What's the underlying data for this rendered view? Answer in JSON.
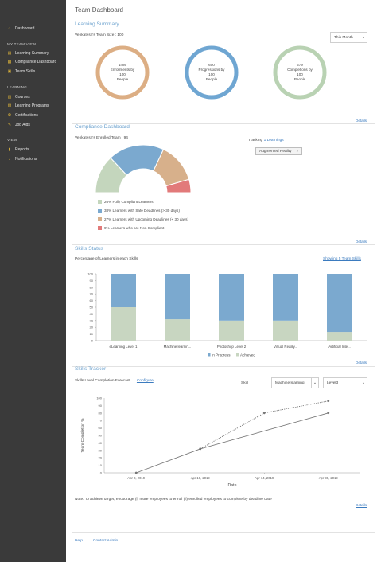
{
  "sidebar": {
    "dashboard": "Dashboard",
    "my_team_view_heading": "MY TEAM VIEW",
    "learning_summary": "Learning Summary",
    "compliance_dashboard": "Compliance Dashboard",
    "team_skills": "Team Skills",
    "learning_heading": "LEARNING",
    "courses": "Courses",
    "learning_programs": "Learning Programs",
    "certifications": "Certifications",
    "job_aids": "Job Aids",
    "view_heading": "VIEW",
    "reports": "Reports",
    "notifications": "Notifications",
    "icon_color": "#d8b03a"
  },
  "header": {
    "title": "Team Dashboard"
  },
  "learning_summary": {
    "title": "Learning Summary",
    "team_size": "Venkatesh's Team Size : 100",
    "period_select": "This Month",
    "donuts": [
      {
        "value": "1486",
        "line1": "Enrollments by",
        "line2": "100",
        "line3": "People",
        "color": "#dcae84"
      },
      {
        "value": "600",
        "line1": "Progressions by",
        "line2": "100",
        "line3": "People",
        "color": "#6fa6d2"
      },
      {
        "value": "579",
        "line1": "Completions by",
        "line2": "100",
        "line3": "People",
        "color": "#b9d2b3"
      }
    ],
    "details": "Details"
  },
  "compliance": {
    "title": "Compliance Dashboard",
    "enrolled_team": "Venkatesh's Enrolled Team : 94",
    "tracking_label": "Tracking",
    "tracking_link": "1 Learnings",
    "tag": "Augmented Reality",
    "tag_close": "×",
    "segments": [
      {
        "percent": 26,
        "label": "26% Fully Compliant Learners",
        "color": "#c4d6bd"
      },
      {
        "percent": 38,
        "label": "38% Learners with Safe Deadlines (> 30 days)",
        "color": "#7ba9cf"
      },
      {
        "percent": 27,
        "label": "27% Learners with Upcoming Deadlines (< 30 days)",
        "color": "#d7b08b"
      },
      {
        "percent": 9,
        "label": "9% Learners who are Non Compliant",
        "color": "#e27a7a"
      }
    ],
    "details": "Details"
  },
  "skills_status": {
    "title": "Skills Status",
    "subtitle": "Percentage of Learners in each Skills",
    "showing_link": "Showing 5 Team Skills",
    "details": "Details",
    "chart_data": {
      "type": "bar",
      "stacked": true,
      "categories": [
        "eLearning Level 1",
        "Machine learnin...",
        "Photoshop Level 2",
        "Virtual Reality...",
        "Artificial Inte..."
      ],
      "series": [
        {
          "name": "Achieved",
          "values": [
            50,
            32,
            30,
            30,
            13
          ],
          "color": "#c8d6c1"
        },
        {
          "name": "In Progress",
          "values": [
            50,
            68,
            70,
            70,
            87
          ],
          "color": "#7ba9cf"
        }
      ],
      "legend_order": [
        "In Progress",
        "Achieved"
      ],
      "yticks": [
        "0",
        "10",
        "20",
        "30",
        "40",
        "50",
        "60",
        "70",
        "80",
        "90",
        "100"
      ],
      "ylim": [
        0,
        100
      ],
      "legend": "bottom"
    }
  },
  "skills_tracker": {
    "title": "Skills Tracker",
    "subtitle": "Skills Level Completion Forecast",
    "configure_link": "Configure",
    "skill_label": "Skill",
    "skill_select": "Machine learning",
    "level_select": "Level3",
    "details": "Details",
    "note": "Note: To achieve target, encourage (i) more employees to enroll (ii) enrolled employees to complete by deadline date",
    "chart_data": {
      "type": "line",
      "xlabel": "Date",
      "ylabel": "Team Completion %",
      "xticks": [
        "Apr 2, 2019",
        "Apr 10, 2019",
        "Apr 14, 2019",
        "Apr 30, 2019"
      ],
      "yticks": [
        "0",
        "10",
        "20",
        "30",
        "40",
        "50",
        "60",
        "70",
        "80",
        "90",
        "100"
      ],
      "ylim": [
        0,
        100
      ],
      "series": [
        {
          "style": "solid",
          "x": [
            "Apr 2, 2019",
            "Apr 10, 2019",
            "Apr 30, 2019"
          ],
          "y": [
            0,
            32,
            80
          ],
          "color": "#777777"
        },
        {
          "style": "dotted",
          "x": [
            "Apr 10, 2019",
            "Apr 14, 2019",
            "Apr 30, 2019"
          ],
          "y": [
            32,
            80,
            96
          ],
          "color": "#777777"
        }
      ]
    }
  },
  "footer": {
    "help": "Help",
    "contact": "Contact Admin"
  }
}
